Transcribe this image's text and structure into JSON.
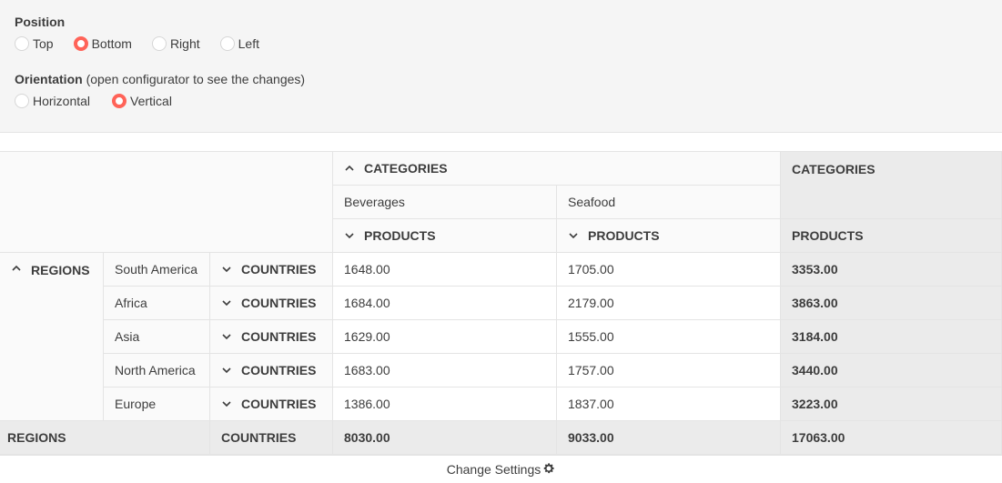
{
  "config": {
    "position_title": "Position",
    "position_options": [
      "Top",
      "Bottom",
      "Right",
      "Left"
    ],
    "position_selected": "Bottom",
    "orientation_title": "Orientation",
    "orientation_note": "(open configurator to see the changes)",
    "orientation_options": [
      "Horizontal",
      "Vertical"
    ],
    "orientation_selected": "Vertical"
  },
  "pivot": {
    "columns_header": "CATEGORIES",
    "column_members": [
      "Beverages",
      "Seafood"
    ],
    "products_header": "PRODUCTS",
    "grand_total_col_header": "CATEGORIES",
    "grand_total_col_sub": "PRODUCTS",
    "rows_header": "REGIONS",
    "countries_header": "COUNTRIES",
    "rows": [
      {
        "region": "South America",
        "values": [
          "1648.00",
          "1705.00"
        ],
        "total": "3353.00"
      },
      {
        "region": "Africa",
        "values": [
          "1684.00",
          "2179.00"
        ],
        "total": "3863.00"
      },
      {
        "region": "Asia",
        "values": [
          "1629.00",
          "1555.00"
        ],
        "total": "3184.00"
      },
      {
        "region": "North America",
        "values": [
          "1683.00",
          "1757.00"
        ],
        "total": "3440.00"
      },
      {
        "region": "Europe",
        "values": [
          "1386.00",
          "1837.00"
        ],
        "total": "3223.00"
      }
    ],
    "totals_row": {
      "label": "REGIONS",
      "sub": "COUNTRIES",
      "values": [
        "8030.00",
        "9033.00"
      ],
      "grand": "17063.00"
    }
  },
  "footer": {
    "change_settings_label": "Change Settings",
    "icon": "gear-icon"
  },
  "colors": {
    "accent": "#ff6358",
    "border": "#e4e4e4",
    "total_bg": "#ebebeb"
  }
}
